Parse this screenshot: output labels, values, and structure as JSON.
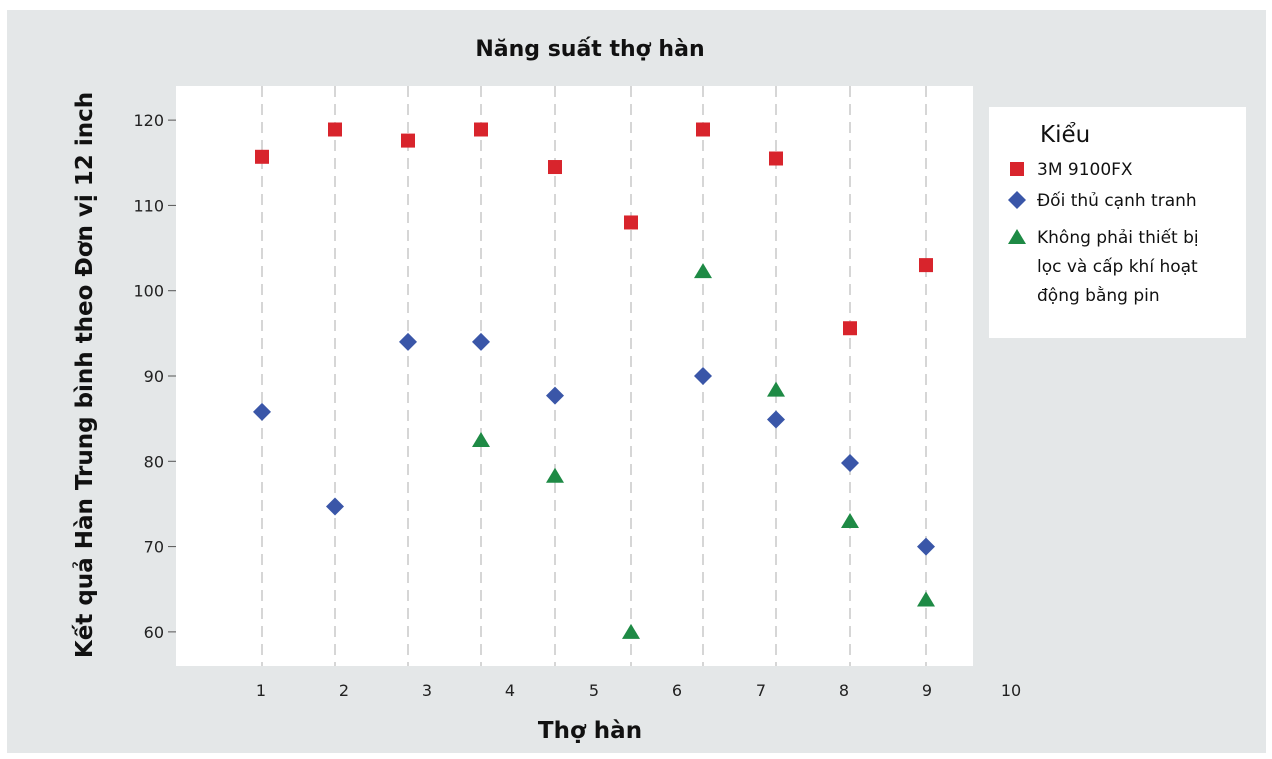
{
  "chart_data": {
    "type": "scatter",
    "title": "Năng suất thợ hàn",
    "xlabel": "Thợ hàn",
    "ylabel": "Kết quả Hàn Trung bình theo Đơn vị 12 inch",
    "x_ticks": [
      "1",
      "2",
      "3",
      "4",
      "5",
      "6",
      "7",
      "8",
      "9",
      "10"
    ],
    "y_ticks": [
      60,
      70,
      80,
      90,
      100,
      110,
      120
    ],
    "ylim": [
      56,
      124
    ],
    "grid": "vertical dashed lines at each welder",
    "legend": {
      "title": "Kiểu",
      "placement": "right",
      "entries": [
        {
          "label": "3M 9100FX",
          "marker": "square",
          "color": "#d8242c"
        },
        {
          "label_lines": [
            "Đối thủ cạnh tranh"
          ],
          "marker": "diamond",
          "color": "#3a56a8"
        },
        {
          "label_lines": [
            "Không phải thiết bị",
            "lọc và cấp khí hoạt",
            "động bằng pin"
          ],
          "marker": "triangle",
          "color": "#1e8a45"
        }
      ]
    },
    "series": [
      {
        "name": "3M 9100FX",
        "marker": "square",
        "color": "#d8242c",
        "points": [
          [
            1,
            115.7
          ],
          [
            2,
            118.9
          ],
          [
            3,
            117.6
          ],
          [
            4,
            118.9
          ],
          [
            5,
            114.5
          ],
          [
            6,
            108
          ],
          [
            7,
            118.9
          ],
          [
            8,
            115.5
          ],
          [
            9,
            95.6
          ],
          [
            10,
            103
          ]
        ]
      },
      {
        "name": "Đối thủ cạnh tranh",
        "marker": "diamond",
        "color": "#3a56a8",
        "points": [
          [
            1,
            85.8
          ],
          [
            2,
            74.7
          ],
          [
            3,
            94
          ],
          [
            4,
            94
          ],
          [
            5,
            87.7
          ],
          [
            7,
            90
          ],
          [
            8,
            84.9
          ],
          [
            9,
            79.8
          ],
          [
            10,
            70
          ]
        ]
      },
      {
        "name": "Không phải thiết bị lọc và cấp khí hoạt động bằng pin",
        "marker": "triangle",
        "color": "#1e8a45",
        "points": [
          [
            4,
            82.5
          ],
          [
            5,
            78.3
          ],
          [
            6,
            60
          ],
          [
            7,
            102.3
          ],
          [
            8,
            88.4
          ],
          [
            9,
            73
          ],
          [
            10,
            63.8
          ]
        ]
      }
    ]
  }
}
